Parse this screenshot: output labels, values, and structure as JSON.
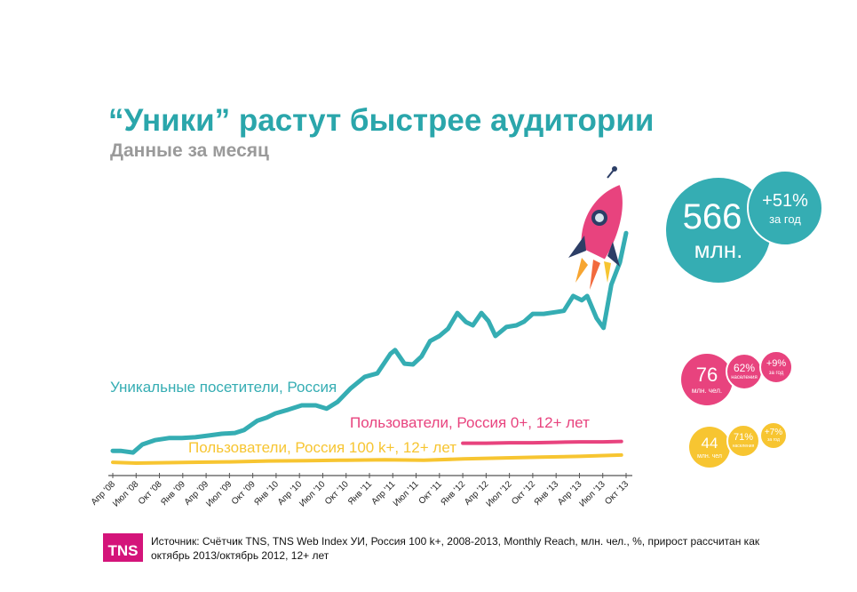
{
  "chart_data": {
    "type": "line",
    "title": "“Уники” растут быстрее аудитории",
    "subtitle": "Данные за месяц",
    "xlabel": "",
    "ylabel": "млн.",
    "x_unit": "months since Apr '08",
    "xlim": [
      0,
      66
    ],
    "ylim": [
      0,
      600
    ],
    "grid": false,
    "tick_labels": [
      "Апр '08",
      "Июл '08",
      "Окт '08",
      "Янв '09",
      "Апр '09",
      "Июл '09",
      "Окт '09",
      "Янв '10",
      "Апр '10",
      "Июл '10",
      "Окт '10",
      "Янв '11",
      "Апр '11",
      "Июл '11",
      "Окт '11",
      "Янв '12",
      "Апр '12",
      "Июл '12",
      "Окт '12",
      "Янв '13",
      "Апр '13",
      "Июл '13",
      "Окт '13"
    ],
    "series": [
      {
        "name": "Уникальные посетители, Россия",
        "color": "#35adb3",
        "x": [
          0,
          1,
          2.6,
          3.8,
          5.4,
          7.2,
          8.9,
          10.6,
          12.4,
          14,
          15.7,
          16.9,
          18.6,
          19.8,
          20.9,
          22.6,
          24.3,
          26.1,
          27.5,
          28.9,
          30.6,
          32.4,
          34,
          35.7,
          36.3,
          37.5,
          38.6,
          39.7,
          40.8,
          42,
          43.1,
          44.3,
          45.4,
          46.3,
          47.4,
          48.3,
          49.2,
          50.6,
          51.9,
          52.9,
          54,
          55.4,
          56.9,
          58,
          59.2,
          60.3,
          61,
          62.2,
          63.1,
          64.1,
          65.2,
          66
        ],
        "y": [
          54,
          54,
          50,
          69,
          79,
          84,
          84,
          86,
          90,
          94,
          96,
          103,
          125,
          132,
          142,
          151,
          161,
          161,
          153,
          169,
          201,
          228,
          236,
          282,
          291,
          259,
          257,
          276,
          312,
          324,
          341,
          378,
          357,
          349,
          378,
          359,
          324,
          345,
          349,
          358,
          376,
          376,
          380,
          383,
          418,
          408,
          418,
          366,
          343,
          445,
          497,
          566
        ]
      },
      {
        "name": "Пользователи, Россия 0+, 12+ лет",
        "color": "#e8437e",
        "x": [
          45,
          48,
          51,
          54,
          57,
          60,
          63,
          65.4
        ],
        "y": [
          72,
          72,
          73,
          73,
          74,
          75,
          75,
          76
        ]
      },
      {
        "name": "Пользователи, Россия 100 k+, 12+ лет",
        "color": "#f7c531",
        "x": [
          0,
          3,
          6,
          10,
          15,
          20,
          25,
          30,
          35,
          40,
          45,
          50,
          55,
          60,
          65.4
        ],
        "y": [
          27,
          25,
          26,
          27,
          28,
          30,
          31,
          32,
          33,
          32,
          35,
          37,
          39,
          41,
          44
        ]
      }
    ]
  },
  "bubbles": {
    "uniques": {
      "value": "566",
      "unit": "млн.",
      "growth": "+51%",
      "growth_label": "за год",
      "color": "#35adb3"
    },
    "users_all": {
      "value": "76",
      "unit": "млн. чел.",
      "share": "62%",
      "share_label": "населения",
      "growth": "+9%",
      "growth_label": "за год",
      "color": "#e8437e"
    },
    "users_100k": {
      "value": "44",
      "unit": "млн. чел",
      "share": "71%",
      "share_label": "населения",
      "growth": "+7%",
      "growth_label": "за год",
      "color": "#f7c531"
    }
  },
  "footer": {
    "logo": "TNS",
    "source": "Источник: Счётчик TNS, TNS Web Index УИ, Россия 100 k+, 2008-2013, Monthly Reach, млн. чел., %, прирост рассчитан как октябрь 2013/октябрь 2012, 12+ лет"
  }
}
